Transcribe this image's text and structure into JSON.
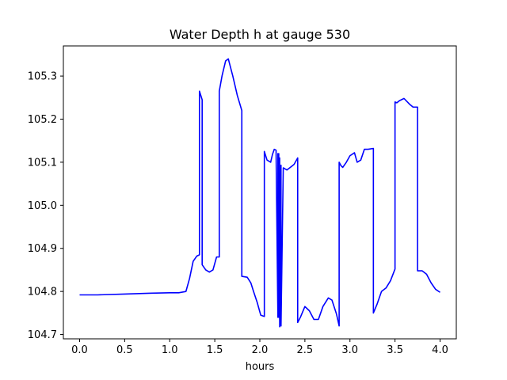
{
  "chart_data": {
    "type": "line",
    "title": "Water Depth h at gauge 530",
    "xlabel": "hours",
    "ylabel": "",
    "xlim": [
      -0.18,
      4.18
    ],
    "ylim": [
      104.69,
      105.37
    ],
    "xticks": [
      0.0,
      0.5,
      1.0,
      1.5,
      2.0,
      2.5,
      3.0,
      3.5,
      4.0
    ],
    "xtick_labels": [
      "0.0",
      "0.5",
      "1.0",
      "1.5",
      "2.0",
      "2.5",
      "3.0",
      "3.5",
      "4.0"
    ],
    "yticks": [
      104.7,
      104.8,
      104.9,
      105.0,
      105.1,
      105.2,
      105.3
    ],
    "ytick_labels": [
      "104.7",
      "104.8",
      "104.9",
      "105.0",
      "105.1",
      "105.2",
      "105.3"
    ],
    "grid": false,
    "series": [
      {
        "color": "#0000ff",
        "x": [
          0.0,
          0.2,
          0.5,
          0.8,
          1.0,
          1.1,
          1.18,
          1.22,
          1.26,
          1.3,
          1.33,
          1.33,
          1.36,
          1.36,
          1.4,
          1.44,
          1.48,
          1.52,
          1.55,
          1.55,
          1.58,
          1.62,
          1.65,
          1.7,
          1.75,
          1.8,
          1.8,
          1.86,
          1.9,
          1.93,
          1.97,
          2.01,
          2.05,
          2.05,
          2.08,
          2.12,
          2.14,
          2.16,
          2.18,
          2.2,
          2.2,
          2.2,
          2.21,
          2.21,
          2.22,
          2.22,
          2.235,
          2.235,
          2.26,
          2.3,
          2.35,
          2.38,
          2.42,
          2.42,
          2.45,
          2.5,
          2.55,
          2.6,
          2.65,
          2.7,
          2.76,
          2.8,
          2.85,
          2.88,
          2.88,
          2.9,
          2.92,
          2.96,
          3.0,
          3.05,
          3.08,
          3.12,
          3.16,
          3.2,
          3.26,
          3.26,
          3.3,
          3.35,
          3.4,
          3.45,
          3.5,
          3.5,
          3.52,
          3.55,
          3.6,
          3.66,
          3.7,
          3.75,
          3.75,
          3.8,
          3.85,
          3.9,
          3.95,
          4.0
        ],
        "y": [
          104.792,
          104.792,
          104.794,
          104.796,
          104.797,
          104.797,
          104.8,
          104.83,
          104.87,
          104.882,
          104.885,
          105.265,
          105.245,
          104.862,
          104.85,
          104.845,
          104.85,
          104.88,
          104.88,
          105.265,
          105.3,
          105.335,
          105.34,
          105.3,
          105.255,
          105.22,
          104.835,
          104.833,
          104.82,
          104.8,
          104.775,
          104.745,
          104.742,
          105.125,
          105.105,
          105.1,
          105.118,
          105.13,
          105.128,
          104.75,
          105.12,
          104.74,
          105.12,
          104.74,
          105.11,
          104.718,
          105.093,
          104.72,
          105.087,
          105.082,
          105.09,
          105.095,
          105.11,
          104.728,
          104.74,
          104.765,
          104.755,
          104.735,
          104.735,
          104.765,
          104.785,
          104.78,
          104.748,
          104.72,
          105.1,
          105.092,
          105.088,
          105.1,
          105.115,
          105.122,
          105.1,
          105.105,
          105.13,
          105.13,
          105.132,
          104.75,
          104.77,
          104.8,
          104.808,
          104.825,
          104.852,
          105.24,
          105.238,
          105.243,
          105.248,
          105.235,
          105.228,
          105.228,
          104.848,
          104.848,
          104.84,
          104.82,
          104.805,
          104.798
        ]
      }
    ]
  }
}
